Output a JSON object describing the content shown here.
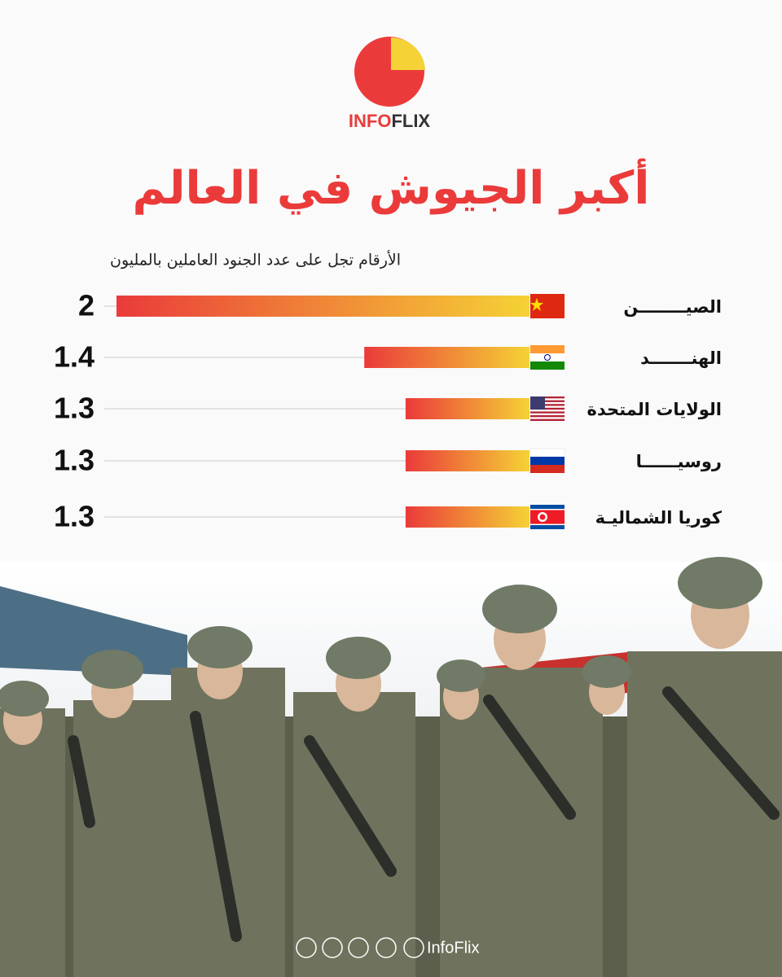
{
  "logo": {
    "part_1": "INFO",
    "part_2": "FLIX"
  },
  "chart_data": {
    "type": "bar",
    "orientation": "horizontal",
    "reversed": true,
    "title": "أكبر الجيوش في العالم",
    "subtitle": "الأرقام تجل على عدد الجنود العاملين بالمليون",
    "categories": [
      "الصيــــــــن",
      "الهنـــــــد",
      "الولايات المتحدة",
      "روسيــــــا",
      "كوريا الشماليـة"
    ],
    "values": [
      2,
      1.4,
      1.3,
      1.3,
      1.3
    ],
    "colors": [
      "#ea3b3a",
      "#f5d235"
    ],
    "xlim": [
      1,
      2
    ]
  },
  "footer": {
    "handle": "InfoFlix"
  }
}
